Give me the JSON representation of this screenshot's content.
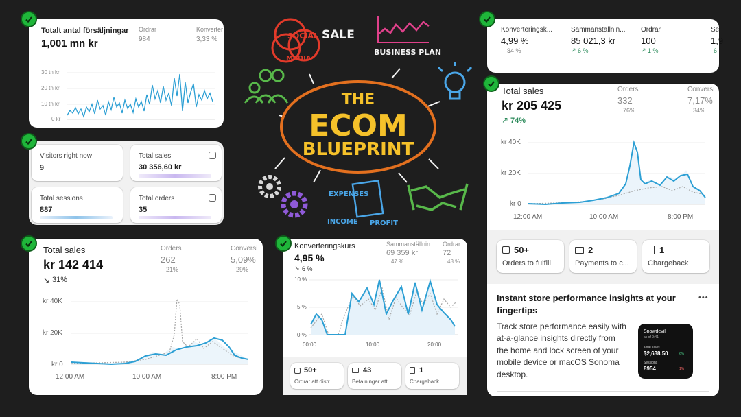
{
  "colors": {
    "accent": "#2c9fd4",
    "success": "#1fb63a",
    "positive": "#2b8a5a",
    "negative": "#8a8a8a",
    "card": "#ffffff",
    "board": "#1e1e1e"
  },
  "card_top_left": {
    "title": "Totalt antal försäljningar",
    "value": "1,001 mn kr",
    "col2_label": "Ordrar",
    "col2_value": "984",
    "col3_label": "Konverter",
    "col3_value": "3,33 %",
    "y_ticks": [
      "30 tn kr",
      "20 tn kr",
      "10 tn kr",
      "0 kr"
    ]
  },
  "card_live": {
    "visitors_label": "Visitors right now",
    "visitors_value": "9",
    "sales_label": "Total sales",
    "sales_value": "30 356,60 kr",
    "sessions_label": "Total sessions",
    "sessions_value": "887",
    "orders_label": "Total orders",
    "orders_value": "35"
  },
  "card_bottom_left": {
    "title": "Total sales",
    "value": "kr 142 414",
    "change": "31%",
    "col2_label": "Orders",
    "col2_value": "262",
    "col2_change": "21%",
    "col3_label": "Conversi",
    "col3_value": "5,09%",
    "col3_change": "29%",
    "y_ticks": [
      "kr 40K",
      "kr 20K",
      "kr 0"
    ],
    "x_ticks": [
      "12:00 AM",
      "10:00 AM",
      "8:00 PM"
    ]
  },
  "card_bottom_mid": {
    "title": "Konverteringskurs",
    "value": "4,95 %",
    "change": "6 %",
    "col2_label": "Sammanställnin",
    "col2_value": "69 359 kr",
    "col2_change": "47 %",
    "col3_label": "Ordrar",
    "col3_value": "72",
    "col3_change": "48 %",
    "y_ticks": [
      "10 %",
      "5 %",
      "0 %"
    ],
    "x_ticks": [
      "00:00",
      "10:00",
      "20:00"
    ],
    "tiles": [
      {
        "value": "50+",
        "label": "Ordrar att distr..."
      },
      {
        "value": "43",
        "label": "Betalningar att..."
      },
      {
        "value": "1",
        "label": "Chargeback"
      }
    ]
  },
  "card_top_right": {
    "metrics": [
      {
        "label": "Konverteringsk...",
        "value": "4,99 %",
        "change": "34 %",
        "dir": "down"
      },
      {
        "label": "Sammanställnin...",
        "value": "85 021,3 kr",
        "change": "6 %",
        "dir": "up"
      },
      {
        "label": "Ordrar",
        "value": "100",
        "change": "1 %",
        "dir": "up"
      },
      {
        "label": "Se",
        "value": "1,9",
        "change": "6",
        "dir": "up"
      }
    ]
  },
  "card_right": {
    "title": "Total sales",
    "value": "kr 205 425",
    "change": "74%",
    "col2_label": "Orders",
    "col2_value": "332",
    "col2_change": "76%",
    "col3_label": "Conversi",
    "col3_value": "7,17%",
    "col3_change": "34%",
    "y_ticks": [
      "kr 40K",
      "kr 20K",
      "kr 0"
    ],
    "x_ticks": [
      "12:00 AM",
      "10:00 AM",
      "8:00 PM"
    ],
    "tiles": [
      {
        "value": "50+",
        "label": "Orders to fulfill"
      },
      {
        "value": "2",
        "label": "Payments to c..."
      },
      {
        "value": "1",
        "label": "Chargeback"
      }
    ],
    "insight_title": "Instant store performance insights at your fingertips",
    "insight_body": "Track store performance easily with at-a-glance insights directly from the home and lock screen of your mobile device or macOS Sonoma desktop.",
    "more_label": "•••",
    "widget": {
      "store": "Snowdevil",
      "time": "as of 9:41",
      "sales_label": "Total sales",
      "sales_value": "$2,638.50",
      "sales_change": "6%",
      "sessions_label": "Sessions",
      "sessions_value": "8954",
      "sessions_change": "1%"
    }
  },
  "blackboard": {
    "title_line1": "THE",
    "title_line2": "ECOM",
    "title_line3": "BLUEPRINT",
    "social": "SOCIAL",
    "media": "MEDIA",
    "sale": "SALE",
    "business_plan": "BUSINESS PLAN",
    "expenses": "EXPENSES",
    "income": "INCOME",
    "profit": "PROFIT"
  }
}
